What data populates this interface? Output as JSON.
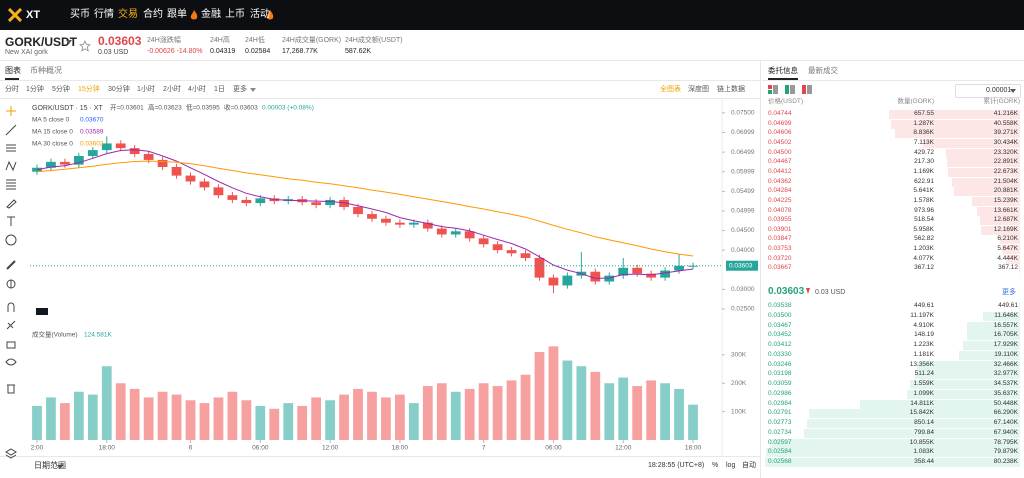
{
  "nav": {
    "logo": "XT",
    "items": [
      "买币",
      "行情",
      "交易",
      "合约",
      "跟单",
      "金融",
      "上币",
      "活动"
    ]
  },
  "header": {
    "pair": "GORK/USDT",
    "name": "New XAI gork",
    "price": "0.03603",
    "price_usd": "0.03 USD",
    "stats": [
      {
        "label": "24H涨跌幅",
        "value": "-0.00626 -14.80%"
      },
      {
        "label": "24H高",
        "value": "0.04319"
      },
      {
        "label": "24H低",
        "value": "0.02584"
      },
      {
        "label": "24H成交量(GORK)",
        "value": "17,268.77K"
      },
      {
        "label": "24H成交额(USDT)",
        "value": "587.62K"
      }
    ]
  },
  "tabs": [
    "图表",
    "币种概况"
  ],
  "intervals": [
    "分时",
    "1分钟",
    "5分钟",
    "15分钟",
    "30分钟",
    "1小时",
    "2小时",
    "4小时",
    "1日",
    "更多"
  ],
  "views": [
    "全图表",
    "深度图",
    "链上数据"
  ],
  "chart_data": [
    {
      "type": "candlestick",
      "title": "GORK/USDT · 15 · XT",
      "ohlc_legend": [
        "开=0.03601",
        "高=0.03623",
        "低=0.03595",
        "收=0.03603",
        "0.00003 (+0.08%)"
      ],
      "categories": [
        "2:00",
        null,
        null,
        null,
        null,
        "18:00",
        null,
        null,
        null,
        null,
        null,
        "6",
        null,
        null,
        null,
        null,
        "06:00",
        null,
        null,
        null,
        null,
        "12:00",
        null,
        null,
        null,
        null,
        "18:00",
        null,
        null,
        null,
        null,
        null,
        "7",
        null,
        null,
        null,
        null,
        "06:00",
        null,
        null,
        null,
        null,
        "12:00",
        null,
        null,
        null,
        null,
        "18:00"
      ],
      "open": [
        0.06,
        0.061,
        0.0625,
        0.0618,
        0.064,
        0.0655,
        0.0672,
        0.066,
        0.0645,
        0.063,
        0.0612,
        0.059,
        0.0575,
        0.056,
        0.054,
        0.0528,
        0.052,
        0.0532,
        0.0525,
        0.053,
        0.0522,
        0.0515,
        0.0528,
        0.051,
        0.0492,
        0.048,
        0.047,
        0.0465,
        0.047,
        0.0455,
        0.044,
        0.0448,
        0.043,
        0.0415,
        0.04,
        0.0392,
        0.038,
        0.033,
        0.031,
        0.0335,
        0.0345,
        0.032,
        0.0335,
        0.0355,
        0.034,
        0.033,
        0.0348,
        0.036
      ],
      "high": [
        0.0618,
        0.0633,
        0.0633,
        0.0648,
        0.0663,
        0.069,
        0.068,
        0.0668,
        0.0653,
        0.0638,
        0.062,
        0.0598,
        0.0583,
        0.0568,
        0.0548,
        0.0536,
        0.054,
        0.054,
        0.0538,
        0.0538,
        0.053,
        0.0536,
        0.0536,
        0.0518,
        0.05,
        0.0488,
        0.0478,
        0.0478,
        0.0478,
        0.0463,
        0.0456,
        0.0456,
        0.0438,
        0.0423,
        0.0408,
        0.04,
        0.0388,
        0.0338,
        0.0343,
        0.0395,
        0.0353,
        0.0343,
        0.038,
        0.0363,
        0.0348,
        0.0356,
        0.039,
        0.0368
      ],
      "low": [
        0.0592,
        0.0602,
        0.061,
        0.061,
        0.0632,
        0.0647,
        0.0652,
        0.0637,
        0.0622,
        0.0604,
        0.0582,
        0.0567,
        0.0552,
        0.0532,
        0.052,
        0.0512,
        0.0512,
        0.0517,
        0.0517,
        0.0514,
        0.0507,
        0.0507,
        0.0502,
        0.0484,
        0.0472,
        0.0462,
        0.0457,
        0.0457,
        0.0447,
        0.0432,
        0.0432,
        0.0422,
        0.0407,
        0.0392,
        0.0384,
        0.0372,
        0.0322,
        0.029,
        0.0302,
        0.0327,
        0.0312,
        0.0312,
        0.0327,
        0.0332,
        0.0322,
        0.0322,
        0.034,
        0.0352
      ],
      "close": [
        0.061,
        0.0625,
        0.0618,
        0.064,
        0.0655,
        0.0672,
        0.066,
        0.0645,
        0.063,
        0.0612,
        0.059,
        0.0575,
        0.056,
        0.054,
        0.0528,
        0.052,
        0.0532,
        0.0525,
        0.053,
        0.0522,
        0.0515,
        0.0528,
        0.051,
        0.0492,
        0.048,
        0.047,
        0.0465,
        0.047,
        0.0455,
        0.044,
        0.0448,
        0.043,
        0.0415,
        0.04,
        0.0392,
        0.038,
        0.033,
        0.031,
        0.0335,
        0.0345,
        0.032,
        0.0335,
        0.0355,
        0.034,
        0.033,
        0.0348,
        0.036,
        0.03603
      ],
      "series": [
        {
          "name": "MA 5 close 0",
          "color": "#2962ff",
          "legend_value": {
            "value": 0.0367,
            "label": "0.03670"
          }
        },
        {
          "name": "MA 15 close 0",
          "color": "#9c27b0",
          "legend_value": {
            "value": 0.03589,
            "label": "0.03589"
          },
          "values": [
            0.0605,
            0.0612,
            0.0615,
            0.0623,
            0.0634,
            0.0646,
            0.0654,
            0.0656,
            0.0652,
            0.064,
            0.0627,
            0.061,
            0.0593,
            0.0575,
            0.0559,
            0.0545,
            0.0536,
            0.0529,
            0.0527,
            0.0526,
            0.0525,
            0.0524,
            0.0521,
            0.0513,
            0.0505,
            0.0496,
            0.0483,
            0.0475,
            0.0468,
            0.046,
            0.0456,
            0.0449,
            0.0438,
            0.0427,
            0.0417,
            0.0403,
            0.0383,
            0.0362,
            0.0349,
            0.034,
            0.0328,
            0.0329,
            0.0338,
            0.0339,
            0.0337,
            0.0342,
            0.0347,
            0.0352
          ]
        },
        {
          "name": "MA 30 close 0",
          "color": "#ff9800",
          "legend_value": {
            "value": 0.03603,
            "label": "0.03603"
          },
          "values": [
            0.06,
            0.0603,
            0.0606,
            0.061,
            0.0614,
            0.0619,
            0.0623,
            0.0626,
            0.0627,
            0.0626,
            0.0624,
            0.062,
            0.0615,
            0.0609,
            0.0603,
            0.0597,
            0.0592,
            0.0587,
            0.0582,
            0.0578,
            0.0573,
            0.0569,
            0.0564,
            0.0559,
            0.0553,
            0.0548,
            0.0542,
            0.0536,
            0.053,
            0.0524,
            0.0518,
            0.0511,
            0.0505,
            0.0498,
            0.0491,
            0.0484,
            0.0474,
            0.0463,
            0.0453,
            0.0444,
            0.0434,
            0.0426,
            0.0419,
            0.0411,
            0.0403,
            0.0396,
            0.039,
            0.0385
          ]
        }
      ],
      "up_color": "#26a69a",
      "down_color": "#ef5350",
      "ylim": [
        0.0227,
        0.077
      ],
      "yticks": [
        {
          "value": 0.075,
          "label": "0.07500"
        },
        0.06999,
        0.06499,
        0.05999,
        0.05499,
        0.04999,
        {
          "value": 0.045,
          "label": "0.04500"
        },
        {
          "value": 0.04,
          "label": "0.04000"
        },
        {
          "value": 0.03,
          "label": "0.03000"
        },
        {
          "value": 0.025,
          "label": "0.02500"
        }
      ],
      "last_price": 0.03603
    },
    {
      "type": "bar",
      "title": "成交量(Volume)",
      "legend_value": {
        "value": 124581,
        "label": "124.581K"
      },
      "values": [
        120000,
        150000,
        130000,
        170000,
        160000,
        260000,
        200000,
        180000,
        150000,
        170000,
        160000,
        140000,
        130000,
        150000,
        170000,
        140000,
        120000,
        110000,
        130000,
        120000,
        150000,
        140000,
        160000,
        180000,
        170000,
        150000,
        160000,
        130000,
        190000,
        200000,
        170000,
        180000,
        200000,
        190000,
        210000,
        230000,
        310000,
        330000,
        280000,
        260000,
        240000,
        200000,
        220000,
        190000,
        210000,
        200000,
        180000,
        124581
      ],
      "ylim": [
        0,
        370000
      ],
      "yticks": [
        {
          "value": 100000,
          "label": "100K"
        },
        {
          "value": 200000,
          "label": "200K"
        },
        {
          "value": 300000,
          "label": "300K"
        }
      ]
    }
  ],
  "footer": {
    "range": "日期范围",
    "time": "18:28:55 (UTC+8)",
    "options": [
      "%",
      "log",
      "自动"
    ]
  },
  "orderbook": {
    "tabs": [
      "委托信息",
      "最新成交"
    ],
    "precision": "0.00001",
    "columns": [
      "价格(USDT)",
      "数量(GORK)",
      "累计(GORK)"
    ],
    "asks": [
      [
        "0.04744",
        "657.55",
        {
          "value": 41216,
          "label": "41.216K"
        }
      ],
      [
        "0.04699",
        "1.287K",
        {
          "value": 40558,
          "label": "40.558K"
        }
      ],
      [
        "0.04606",
        "8.836K",
        {
          "value": 39271,
          "label": "39.271K"
        }
      ],
      [
        "0.04502",
        "7.113K",
        {
          "value": 30434,
          "label": "30.434K"
        }
      ],
      [
        "0.04500",
        "429.72",
        {
          "value": 23320,
          "label": "23.320K"
        }
      ],
      [
        "0.04467",
        "217.30",
        {
          "value": 22891,
          "label": "22.891K"
        }
      ],
      [
        "0.04412",
        "1.169K",
        {
          "value": 22673,
          "label": "22.673K"
        }
      ],
      [
        "0.04362",
        "622.91",
        {
          "value": 21504,
          "label": "21.504K"
        }
      ],
      [
        "0.04284",
        "5.641K",
        {
          "value": 20881,
          "label": "20.881K"
        }
      ],
      [
        "0.04225",
        "1.578K",
        {
          "value": 15239,
          "label": "15.239K"
        }
      ],
      [
        "0.04078",
        "973.96",
        {
          "value": 13661,
          "label": "13.661K"
        }
      ],
      [
        "0.03955",
        "518.54",
        {
          "value": 12687,
          "label": "12.687K"
        }
      ],
      [
        "0.03901",
        "5.958K",
        {
          "value": 12169,
          "label": "12.169K"
        }
      ],
      [
        "0.03847",
        "562.82",
        {
          "value": 6210,
          "label": "6.210K"
        }
      ],
      [
        "0.03753",
        "1.203K",
        {
          "value": 5647,
          "label": "5.647K"
        }
      ],
      [
        "0.03720",
        "4.077K",
        {
          "value": 4444,
          "label": "4.444K"
        }
      ],
      [
        "0.03667",
        "367.12",
        367.12
      ]
    ],
    "last_price": "0.03603",
    "last_usd": "0.03 USD",
    "more": "更多",
    "bids": [
      [
        "0.03538",
        "449.61",
        449.61
      ],
      [
        "0.03500",
        "11.197K",
        {
          "value": 11646,
          "label": "11.646K"
        }
      ],
      [
        "0.03467",
        "4.910K",
        {
          "value": 16557,
          "label": "16.557K"
        }
      ],
      [
        "0.03452",
        "148.19",
        {
          "value": 16705,
          "label": "16.705K"
        }
      ],
      [
        "0.03412",
        "1.223K",
        {
          "value": 17929,
          "label": "17.929K"
        }
      ],
      [
        "0.03330",
        "1.181K",
        {
          "value": 19110,
          "label": "19.110K"
        }
      ],
      [
        "0.03246",
        "13.356K",
        {
          "value": 32466,
          "label": "32.466K"
        }
      ],
      [
        "0.03198",
        "511.24",
        {
          "value": 32977,
          "label": "32.977K"
        }
      ],
      [
        "0.03059",
        "1.559K",
        {
          "value": 34537,
          "label": "34.537K"
        }
      ],
      [
        "0.02986",
        "1.099K",
        {
          "value": 35637,
          "label": "35.637K"
        }
      ],
      [
        "0.02984",
        "14.811K",
        {
          "value": 50448,
          "label": "50.448K"
        }
      ],
      [
        "0.02791",
        "15.842K",
        {
          "value": 66290,
          "label": "66.290K"
        }
      ],
      [
        "0.02773",
        "850.14",
        {
          "value": 67140,
          "label": "67.140K"
        }
      ],
      [
        "0.02734",
        "799.84",
        {
          "value": 67940,
          "label": "67.940K"
        }
      ],
      [
        "0.02597",
        "10.855K",
        {
          "value": 78795,
          "label": "78.795K"
        }
      ],
      [
        "0.02584",
        "1.083K",
        {
          "value": 79879,
          "label": "79.879K"
        }
      ],
      [
        "0.02568",
        "358.44",
        {
          "value": 80238,
          "label": "80.238K"
        }
      ]
    ]
  }
}
